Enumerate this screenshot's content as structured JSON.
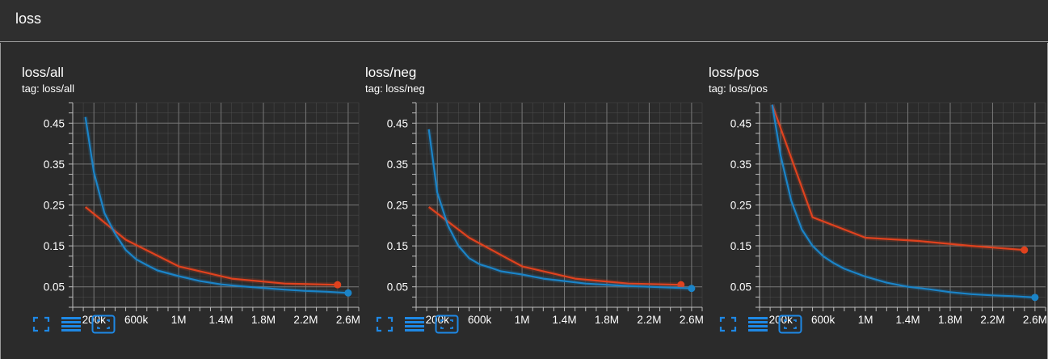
{
  "header": {
    "title": "loss"
  },
  "cards": [
    {
      "title": "loss/all",
      "tag": "tag: loss/all"
    },
    {
      "title": "loss/neg",
      "tag": "tag: loss/neg"
    },
    {
      "title": "loss/pos",
      "tag": "tag: loss/pos"
    }
  ],
  "colors": {
    "red_series": "#e0421e",
    "blue_series": "#1b84c8",
    "grid": "#5e5e5e",
    "icon": "#1e88e5",
    "background": "#2b2b2b"
  },
  "icons": [
    "fullscreen-icon",
    "toggle-log-scale-icon",
    "fit-domain-icon"
  ],
  "chart_data": [
    {
      "type": "line",
      "title": "loss/all",
      "subtitle": "tag: loss/all",
      "x_tick_labels": [
        "200k",
        "600k",
        "1M",
        "1.4M",
        "1.8M",
        "2.2M",
        "2.6M"
      ],
      "y_tick_labels": [
        "0.45",
        "0.35",
        "0.25",
        "0.15",
        "0.05"
      ],
      "xlim": [
        0,
        2700000
      ],
      "ylim": [
        0.0,
        0.5
      ],
      "grid": true,
      "series": [
        {
          "color": "#e0421e",
          "x": [
            120000,
            500000,
            1000000,
            1500000,
            2000000,
            2500000
          ],
          "y": [
            0.245,
            0.165,
            0.1,
            0.07,
            0.058,
            0.055
          ]
        },
        {
          "color": "#1b84c8",
          "x": [
            120000,
            200000,
            300000,
            400000,
            500000,
            600000,
            700000,
            800000,
            1000000,
            1200000,
            1400000,
            1600000,
            1800000,
            2000000,
            2200000,
            2400000,
            2600000
          ],
          "y": [
            0.465,
            0.33,
            0.23,
            0.18,
            0.14,
            0.117,
            0.103,
            0.09,
            0.076,
            0.064,
            0.056,
            0.051,
            0.047,
            0.043,
            0.04,
            0.038,
            0.035
          ]
        }
      ]
    },
    {
      "type": "line",
      "title": "loss/neg",
      "subtitle": "tag: loss/neg",
      "x_tick_labels": [
        "200k",
        "600k",
        "1M",
        "1.4M",
        "1.8M",
        "2.2M",
        "2.6M"
      ],
      "y_tick_labels": [
        "0.45",
        "0.35",
        "0.25",
        "0.15",
        "0.05"
      ],
      "xlim": [
        0,
        2700000
      ],
      "ylim": [
        0.0,
        0.5
      ],
      "grid": true,
      "series": [
        {
          "color": "#e0421e",
          "x": [
            120000,
            500000,
            1000000,
            1500000,
            2000000,
            2500000
          ],
          "y": [
            0.245,
            0.17,
            0.1,
            0.07,
            0.058,
            0.055
          ]
        },
        {
          "color": "#1b84c8",
          "x": [
            120000,
            200000,
            300000,
            400000,
            500000,
            600000,
            700000,
            800000,
            1000000,
            1200000,
            1400000,
            1600000,
            1800000,
            2000000,
            2200000,
            2400000,
            2600000
          ],
          "y": [
            0.435,
            0.28,
            0.2,
            0.15,
            0.12,
            0.105,
            0.097,
            0.088,
            0.08,
            0.07,
            0.064,
            0.058,
            0.055,
            0.052,
            0.05,
            0.048,
            0.046
          ]
        }
      ]
    },
    {
      "type": "line",
      "title": "loss/pos",
      "subtitle": "tag: loss/pos",
      "x_tick_labels": [
        "200k",
        "600k",
        "1M",
        "1.4M",
        "1.8M",
        "2.2M",
        "2.6M"
      ],
      "y_tick_labels": [
        "0.45",
        "0.35",
        "0.25",
        "0.15",
        "0.05"
      ],
      "xlim": [
        0,
        2700000
      ],
      "ylim": [
        0.0,
        0.5
      ],
      "grid": true,
      "series": [
        {
          "color": "#e0421e",
          "x": [
            120000,
            500000,
            1000000,
            1500000,
            2000000,
            2500000
          ],
          "y": [
            0.495,
            0.22,
            0.17,
            0.162,
            0.15,
            0.14
          ]
        },
        {
          "color": "#1b84c8",
          "x": [
            120000,
            200000,
            300000,
            400000,
            500000,
            600000,
            700000,
            800000,
            1000000,
            1200000,
            1400000,
            1600000,
            1800000,
            2000000,
            2200000,
            2400000,
            2600000
          ],
          "y": [
            0.495,
            0.37,
            0.26,
            0.19,
            0.15,
            0.125,
            0.108,
            0.094,
            0.075,
            0.06,
            0.05,
            0.044,
            0.037,
            0.032,
            0.029,
            0.027,
            0.024
          ]
        }
      ]
    }
  ]
}
